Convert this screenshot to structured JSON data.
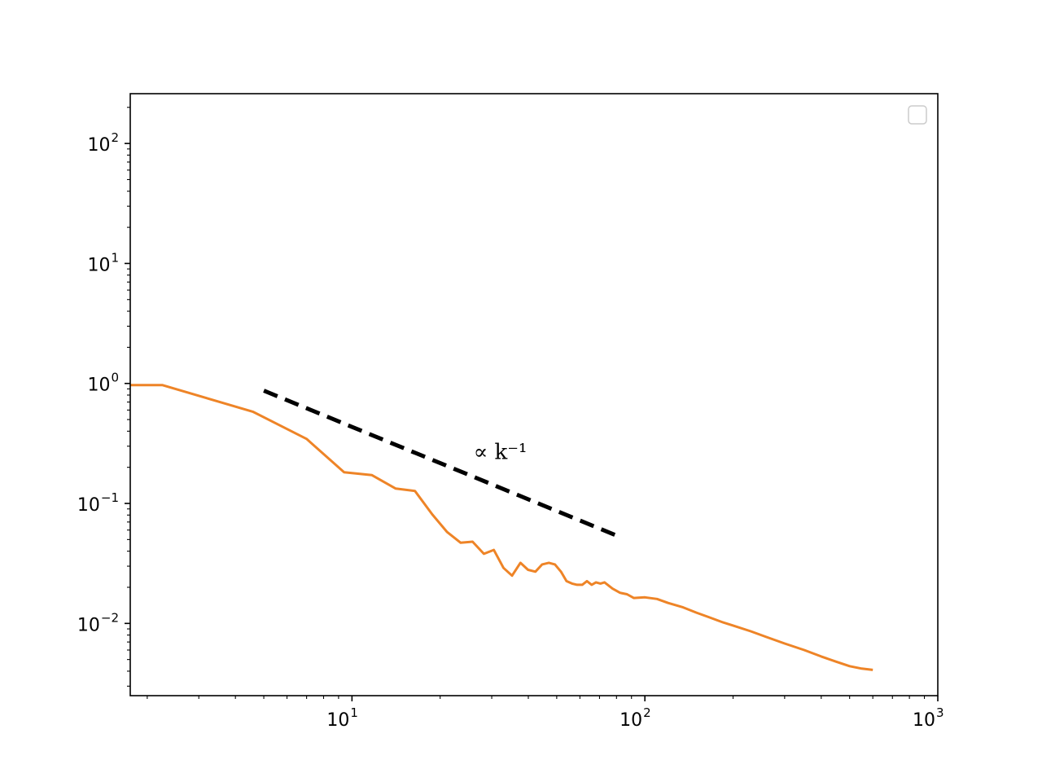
{
  "chart_data": {
    "type": "line",
    "title": "",
    "xlabel": "",
    "ylabel": "",
    "xscale": "log",
    "yscale": "log",
    "xlim": [
      1.75,
      1000
    ],
    "ylim": [
      0.0025,
      260
    ],
    "grid": false,
    "legend": {
      "placement": "upper right",
      "entries": []
    },
    "x_ticks": [
      {
        "base": "10",
        "exp": "1",
        "value": 10
      },
      {
        "base": "10",
        "exp": "2",
        "value": 100
      },
      {
        "base": "10",
        "exp": "3",
        "value": 1000
      }
    ],
    "y_ticks": [
      {
        "base": "10",
        "exp": "−2",
        "value": 0.01
      },
      {
        "base": "10",
        "exp": "−1",
        "value": 0.1
      },
      {
        "base": "10",
        "exp": "0",
        "value": 1
      },
      {
        "base": "10",
        "exp": "1",
        "value": 10
      },
      {
        "base": "10",
        "exp": "2",
        "value": 100
      }
    ],
    "series": [
      {
        "color": "#ee8427",
        "style": "solid",
        "points": [
          [
            1.75,
            0.97
          ],
          [
            2.25,
            0.97
          ],
          [
            4.6,
            0.58
          ],
          [
            7.0,
            0.345
          ],
          [
            9.4,
            0.182
          ],
          [
            11.7,
            0.172
          ],
          [
            14.1,
            0.133
          ],
          [
            16.4,
            0.127
          ],
          [
            18.8,
            0.081
          ],
          [
            21.1,
            0.058
          ],
          [
            23.5,
            0.047
          ],
          [
            25.8,
            0.048
          ],
          [
            28.2,
            0.038
          ],
          [
            30.5,
            0.041
          ],
          [
            32.9,
            0.029
          ],
          [
            35.2,
            0.025
          ],
          [
            37.6,
            0.032
          ],
          [
            39.9,
            0.028
          ],
          [
            42.3,
            0.027
          ],
          [
            44.6,
            0.031
          ],
          [
            47.0,
            0.032
          ],
          [
            49.3,
            0.031
          ],
          [
            51.7,
            0.027
          ],
          [
            54.0,
            0.0225
          ],
          [
            56.4,
            0.0215
          ],
          [
            58.7,
            0.021
          ],
          [
            61.1,
            0.021
          ],
          [
            63.4,
            0.0225
          ],
          [
            65.8,
            0.021
          ],
          [
            68.1,
            0.022
          ],
          [
            70.5,
            0.0215
          ],
          [
            72.8,
            0.022
          ],
          [
            77.5,
            0.0195
          ],
          [
            82.2,
            0.018
          ],
          [
            86.9,
            0.0175
          ],
          [
            91.6,
            0.0163
          ],
          [
            100,
            0.0165
          ],
          [
            110,
            0.016
          ],
          [
            120,
            0.0148
          ],
          [
            135,
            0.0136
          ],
          [
            150,
            0.0123
          ],
          [
            165,
            0.0113
          ],
          [
            185,
            0.0102
          ],
          [
            200,
            0.0096
          ],
          [
            230,
            0.0086
          ],
          [
            260,
            0.0077
          ],
          [
            300,
            0.0068
          ],
          [
            350,
            0.006
          ],
          [
            400,
            0.0053
          ],
          [
            450,
            0.0048
          ],
          [
            500,
            0.0044
          ],
          [
            550,
            0.0042
          ],
          [
            600,
            0.0041
          ]
        ]
      },
      {
        "color": "#000000",
        "style": "dashed",
        "points": [
          [
            5,
            0.87
          ],
          [
            80,
            0.054
          ]
        ]
      }
    ],
    "annotations": [
      {
        "text": "∝ k⁻¹",
        "x": 26,
        "y": 0.27
      }
    ]
  }
}
